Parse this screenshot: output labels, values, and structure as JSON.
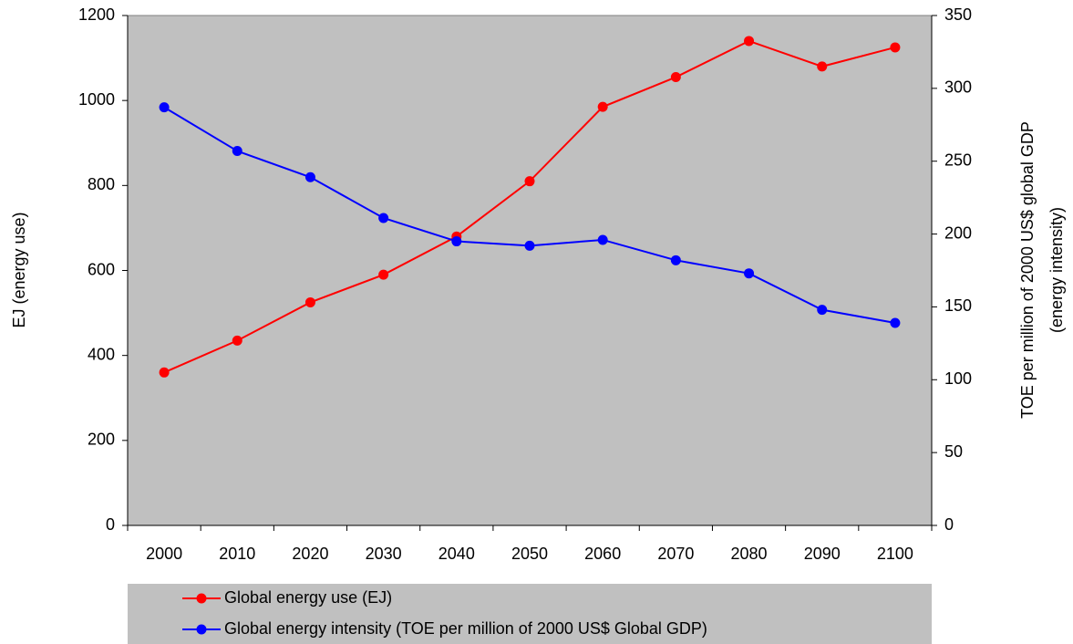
{
  "chart_data": {
    "type": "line",
    "y_label": "EJ (energy use)",
    "y2_label": [
      "TOE per million of 2000 US$ global GDP",
      "(energy intensity)"
    ],
    "categories": [
      "2000",
      "2010",
      "2020",
      "2030",
      "2040",
      "2050",
      "2060",
      "2070",
      "2080",
      "2090",
      "2100"
    ],
    "series": [
      {
        "name": "Global energy use (EJ)",
        "color": "#ff0000",
        "values": [
          360,
          435,
          525,
          590,
          680,
          810,
          985,
          1055,
          1140,
          1080,
          1125
        ]
      },
      {
        "name": "Global energy intensity (TOE per million of 2000 US$ Global GDP)",
        "color": "#0000ff",
        "axis": "y2",
        "values": [
          287,
          257,
          239,
          211,
          195,
          192,
          196,
          182,
          173,
          148,
          139
        ]
      }
    ],
    "ylim": [
      0,
      1200
    ],
    "yticks": [
      0,
      200,
      400,
      600,
      800,
      1000,
      1200
    ],
    "y2lim": [
      0,
      350
    ],
    "y2ticks": [
      0,
      50,
      100,
      150,
      200,
      250,
      300,
      350
    ],
    "plot_background": "#c0c0c0",
    "legend_background": "#c0c0c0"
  }
}
